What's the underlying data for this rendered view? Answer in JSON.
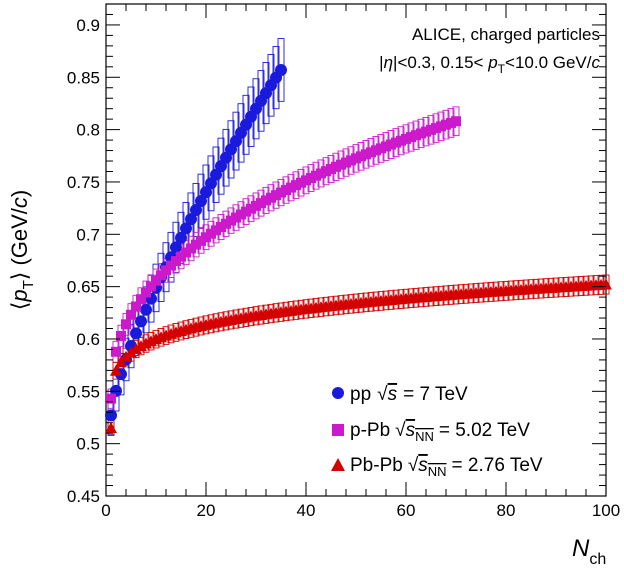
{
  "chart_data": {
    "type": "scatter",
    "xlabel": "N",
    "xlabel_sub": "ch",
    "ylabel_open": "⟨",
    "ylabel_p": "p",
    "ylabel_sub": "T",
    "ylabel_close": "⟩ (GeV/",
    "ylabel_c": "c",
    "ylabel_end": ")",
    "xlim": [
      0,
      100
    ],
    "ylim": [
      0.45,
      0.92
    ],
    "x_ticks": [
      0,
      20,
      40,
      60,
      80,
      100
    ],
    "y_ticks": [
      0.45,
      0.5,
      0.55,
      0.6,
      0.65,
      0.7,
      0.75,
      0.8,
      0.85,
      0.9
    ],
    "x_tick_labels": [
      "0",
      "20",
      "40",
      "60",
      "80",
      "100"
    ],
    "y_tick_labels": [
      "0.45",
      "0.5",
      "0.55",
      "0.6",
      "0.65",
      "0.7",
      "0.75",
      "0.8",
      "0.85",
      "0.9"
    ],
    "grid": false,
    "annotation": {
      "line1": "ALICE, charged particles",
      "line2_a": "|",
      "line2_eta": "η",
      "line2_b": "|<0.3, 0.15< ",
      "line2_p": "p",
      "line2_sub": "T",
      "line2_c": "<10.0 GeV/",
      "line2_cunit": "c"
    },
    "legend_position": "bottom-right",
    "series": [
      {
        "name": "pp",
        "legend_sqrt": "√",
        "legend_s": "s",
        "legend_sub": "",
        "legend_value": "= 7 TeV",
        "marker": "circle",
        "color": "#1a1adc",
        "x_range": [
          1,
          35
        ],
        "y_start": 0.527,
        "y_end": 0.857,
        "shape_exponent": 0.75,
        "sys_rel": 0.035
      },
      {
        "name": "p-Pb",
        "legend_sqrt": "√",
        "legend_s": "s",
        "legend_sub": "NN",
        "legend_value": "= 5.02 TeV",
        "marker": "square",
        "color": "#cc19cc",
        "x_range": [
          1,
          70
        ],
        "y_start": 0.543,
        "y_end": 0.808,
        "shape_exponent": 0.42,
        "sys_rel": 0.017
      },
      {
        "name": "Pb-Pb",
        "legend_sqrt": "√",
        "legend_s": "s",
        "legend_sub": "NN",
        "legend_value": "= 2.76 TeV",
        "marker": "triangle",
        "color": "#d40000",
        "x_range": [
          1,
          100
        ],
        "y_start": 0.515,
        "y_end": 0.652,
        "shape_exponent": 0.2,
        "sys_rel": 0.014
      }
    ]
  }
}
